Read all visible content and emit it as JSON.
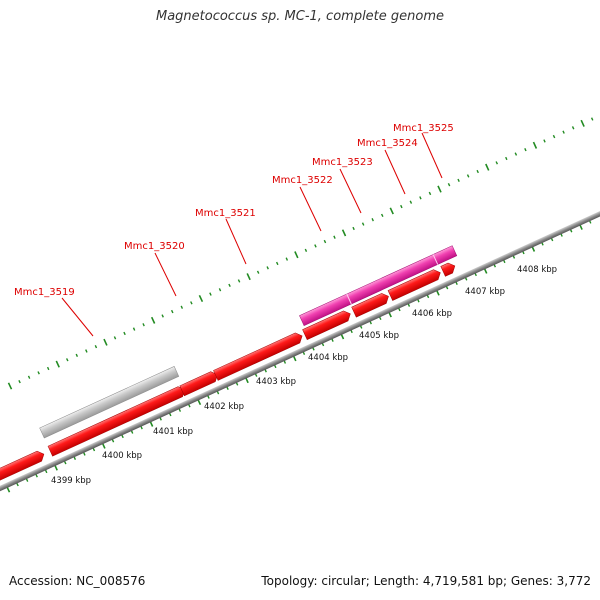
{
  "title": "Magnetococcus sp. MC-1, complete genome",
  "footer": {
    "accession": "Accession: NC_008576",
    "topology": "Topology: circular; Length: 4,719,581 bp; Genes: 3,772"
  },
  "colors": {
    "cds": "#ff0000",
    "rna": "#e31ea0",
    "gray_feature": "#c0c0c0",
    "backbone": "#808080",
    "tick": "#228b22",
    "label": "#dd0000"
  },
  "scale_labels": [
    "4399 kbp",
    "4400 kbp",
    "4401 kbp",
    "4402 kbp",
    "4403 kbp",
    "4404 kbp",
    "4405 kbp",
    "4406 kbp",
    "4407 kbp",
    "4408 kbp"
  ],
  "gene_labels": [
    "Mmc1_3519",
    "Mmc1_3520",
    "Mmc1_3521",
    "Mmc1_3522",
    "Mmc1_3523",
    "Mmc1_3524",
    "Mmc1_3525"
  ]
}
